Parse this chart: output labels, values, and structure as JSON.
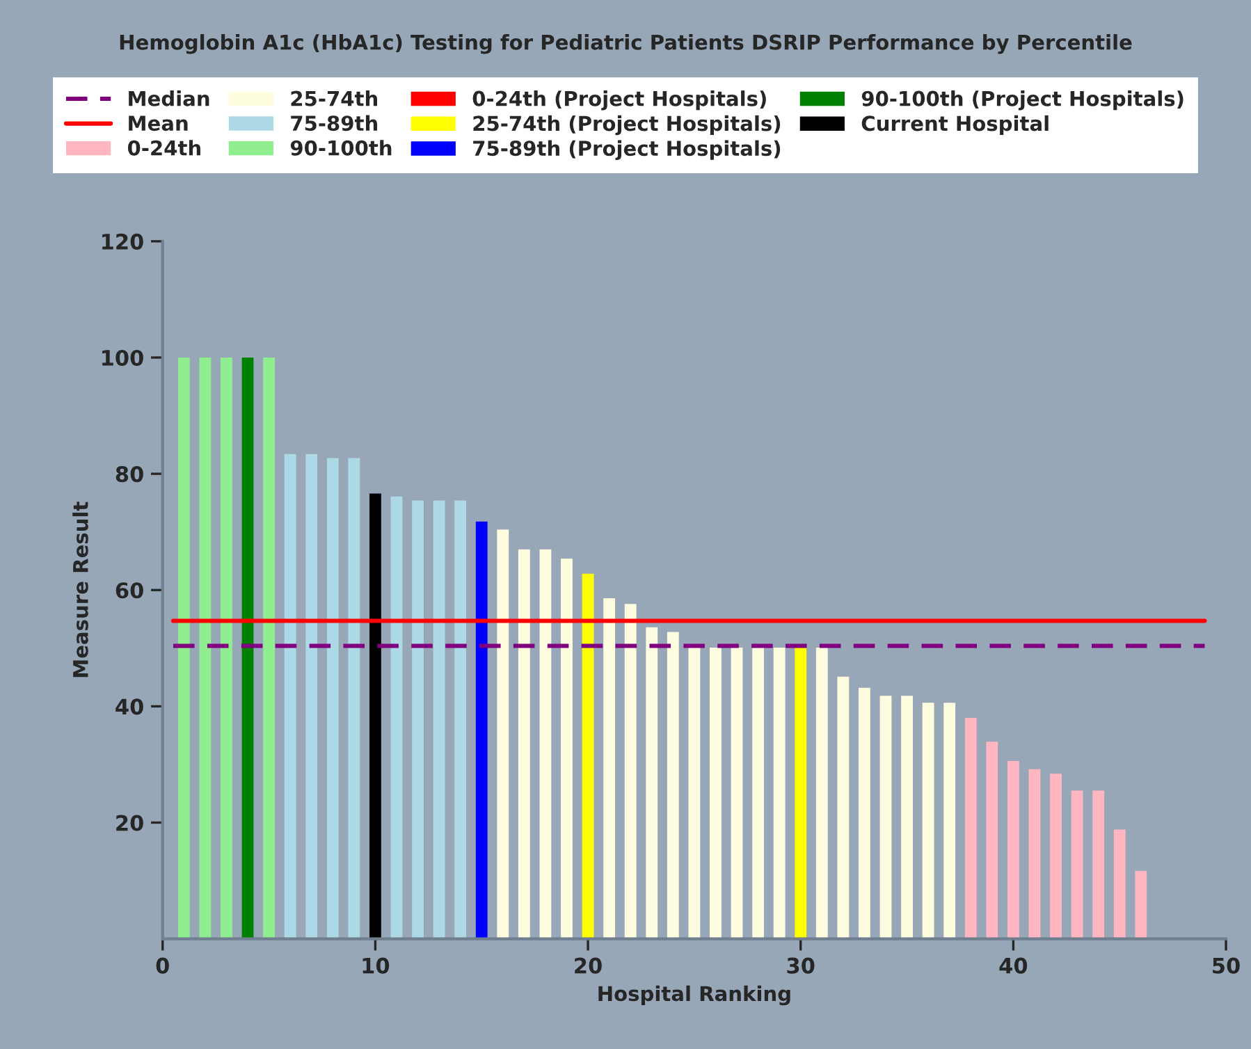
{
  "chart_data": {
    "type": "bar",
    "title": "Hemoglobin A1c (HbA1c) Testing for Pediatric Patients DSRIP Performance by Percentile",
    "xlabel": "Hospital Ranking",
    "ylabel": "Measure Result",
    "xlim": [
      0,
      50
    ],
    "xticks": [
      0,
      10,
      20,
      30,
      40,
      50
    ],
    "ylim": [
      0,
      120
    ],
    "yticks": [
      20,
      40,
      60,
      80,
      100,
      120
    ],
    "grid": false,
    "legend": "top",
    "ref_lines": [
      {
        "axis": "y",
        "value": 50.4,
        "label": "Median",
        "color": "#800080",
        "line_style": "dashed"
      },
      {
        "axis": "y",
        "value": 54.7,
        "label": "Mean",
        "color": "#ff0000",
        "line_style": "solid"
      }
    ],
    "series": [
      {
        "name": "0-24th",
        "color": "#ffb6c1",
        "x": [
          38,
          39,
          40,
          41,
          42,
          43,
          44,
          45,
          46
        ],
        "values": [
          38.0,
          33.9,
          30.6,
          29.2,
          28.4,
          25.5,
          25.5,
          18.8,
          11.7
        ]
      },
      {
        "name": "25-74th",
        "color": "#fffde0",
        "x": [
          16,
          17,
          18,
          19,
          21,
          22,
          23,
          24,
          25,
          26,
          27,
          28,
          29,
          31,
          32,
          33,
          34,
          35,
          36,
          37
        ],
        "values": [
          70.4,
          67.0,
          67.0,
          65.4,
          58.6,
          57.6,
          53.6,
          52.8,
          50.1,
          50.1,
          50.1,
          50.1,
          50.1,
          50.1,
          45.1,
          43.2,
          41.8,
          41.8,
          40.6,
          40.6
        ]
      },
      {
        "name": "75-89th",
        "color": "#add8e6",
        "x": [
          6,
          7,
          8,
          9,
          11,
          12,
          13,
          14
        ],
        "values": [
          83.4,
          83.4,
          82.7,
          82.7,
          76.1,
          75.4,
          75.4,
          75.4
        ]
      },
      {
        "name": "90-100th",
        "color": "#90ee90",
        "x": [
          1,
          2,
          3,
          5
        ],
        "values": [
          100,
          100,
          100,
          100
        ]
      },
      {
        "name": "0-24th (Project Hospitals)",
        "color": "#ff0000"
      },
      {
        "name": "25-74th (Project Hospitals)",
        "color": "#ffff00",
        "x": [
          20,
          30
        ],
        "values": [
          62.8,
          50.1
        ]
      },
      {
        "name": "75-89th (Project Hospitals)",
        "color": "#0000ff",
        "x": [
          15
        ],
        "values": [
          71.8
        ]
      },
      {
        "name": "90-100th (Project Hospitals)",
        "color": "#008000",
        "x": [
          4
        ],
        "values": [
          100
        ]
      },
      {
        "name": "Current Hospital",
        "color": "#000000",
        "x": [
          10
        ],
        "values": [
          76.6
        ]
      }
    ]
  }
}
